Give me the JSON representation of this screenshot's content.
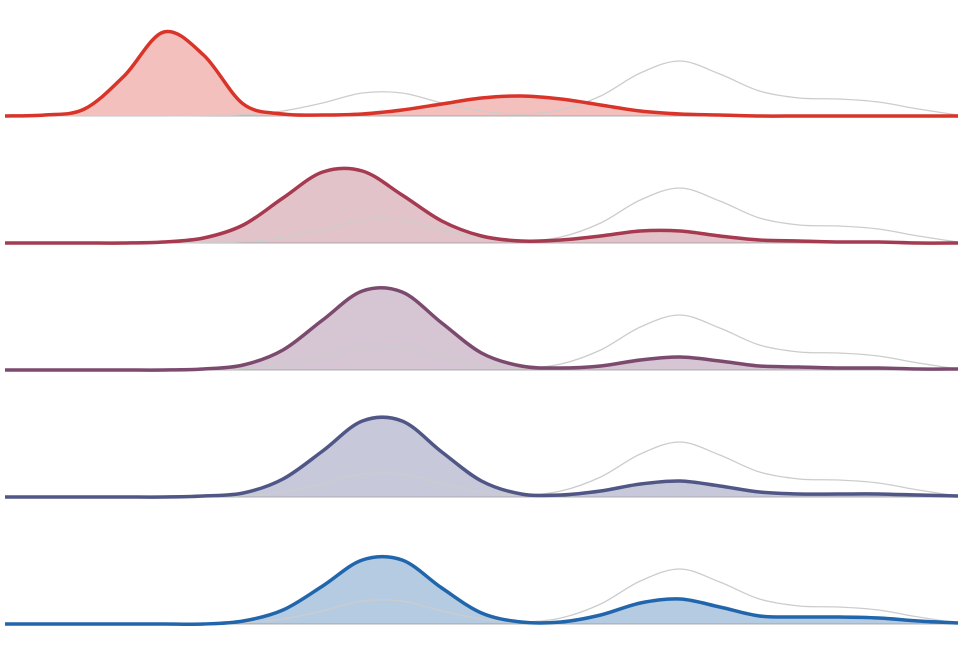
{
  "chart_data": {
    "type": "ridgeline",
    "x": [
      0,
      1,
      2,
      3,
      4,
      5,
      6,
      7,
      8,
      9,
      10,
      11,
      12,
      13,
      14,
      15,
      16,
      17,
      18,
      19,
      20,
      21,
      22,
      23,
      24
    ],
    "xlim": [
      0,
      24
    ],
    "ylim": [
      0,
      100
    ],
    "reference": {
      "color": "#cccccc",
      "values": [
        0,
        0,
        0,
        0,
        0,
        0.5,
        1.2,
        5,
        13,
        23,
        23,
        13,
        5,
        2,
        6,
        20,
        43,
        55,
        42,
        25,
        18,
        17,
        14,
        7,
        1
      ]
    },
    "series": [
      {
        "color": "#d93429",
        "fill": "#f4c0bd",
        "values": [
          0,
          1,
          7,
          40,
          84,
          61,
          12,
          2,
          1,
          2,
          6,
          12,
          18,
          20,
          17,
          11,
          5,
          2,
          1,
          0,
          0,
          0,
          0,
          0,
          0
        ]
      },
      {
        "color": "#a63a50",
        "fill": "#e2c3ca",
        "values": [
          0,
          0,
          0,
          0,
          1,
          5,
          18,
          45,
          71,
          72,
          48,
          22,
          7,
          2,
          3,
          7,
          12,
          12,
          7,
          3,
          2,
          1,
          1,
          0,
          0
        ]
      },
      {
        "color": "#7b4a6e",
        "fill": "#d6c6d3",
        "values": [
          0,
          0,
          0,
          0,
          0,
          1,
          5,
          20,
          50,
          79,
          78,
          47,
          17,
          4,
          2,
          4,
          10,
          13,
          9,
          4,
          3,
          2,
          2,
          1,
          1
        ]
      },
      {
        "color": "#505686",
        "fill": "#c7c9db",
        "values": [
          0,
          0,
          0,
          0,
          0,
          1,
          4,
          18,
          46,
          76,
          76,
          45,
          16,
          3,
          2,
          6,
          13,
          16,
          11,
          5,
          3,
          3,
          3,
          2,
          1
        ]
      },
      {
        "color": "#2166ac",
        "fill": "#b5cbe2",
        "values": [
          0,
          0,
          0,
          0,
          0,
          0,
          3,
          14,
          38,
          64,
          64,
          36,
          11,
          2,
          2,
          9,
          21,
          25,
          17,
          8,
          7,
          7,
          6,
          3,
          1
        ]
      }
    ]
  }
}
